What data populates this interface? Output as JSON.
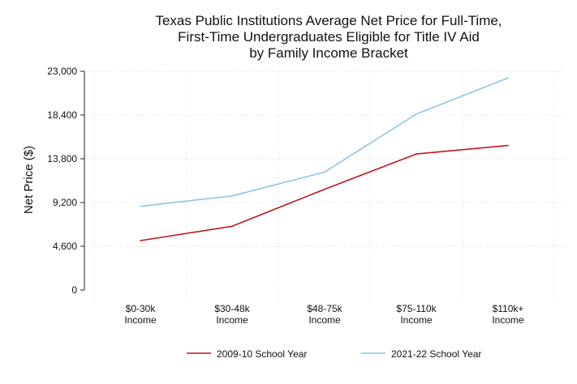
{
  "chart_data": {
    "type": "line",
    "title_lines": [
      "Texas Public Institutions Average Net Price for Full-Time,",
      "First-Time Undergraduates Eligible for Title IV Aid",
      "by Family Income Bracket"
    ],
    "ylabel": "Net Price ($)",
    "xlabel": "",
    "categories": [
      [
        "$0-30k",
        "Income"
      ],
      [
        "$30-48k",
        "Income"
      ],
      [
        "$48-75k",
        "Income"
      ],
      [
        "$75-110k",
        "Income"
      ],
      [
        "$110k+",
        "Income"
      ]
    ],
    "y_ticks": [
      "0",
      "4,600",
      "9,200",
      "13,800",
      "18,400",
      "23,000"
    ],
    "ylim": [
      0,
      23000
    ],
    "grid": true,
    "legend_position": "bottom",
    "series": [
      {
        "name": "2009-10 School Year",
        "color": "#c4161c",
        "values": [
          5200,
          6700,
          10600,
          14300,
          15200
        ]
      },
      {
        "name": "2021-22 School Year",
        "color": "#8ec5e6",
        "values": [
          8800,
          9900,
          12400,
          18500,
          22300
        ]
      }
    ]
  }
}
